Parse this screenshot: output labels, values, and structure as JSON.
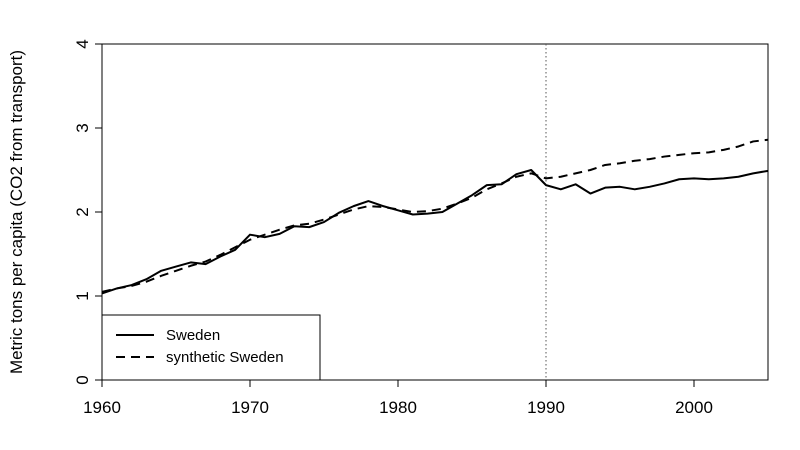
{
  "chart_data": {
    "type": "line",
    "title": "",
    "xlabel": "",
    "ylabel": "Metric tons per capita (CO2 from transport)",
    "xlim": [
      1960,
      2005
    ],
    "ylim": [
      0,
      4
    ],
    "x_ticks": [
      1960,
      1970,
      1980,
      1990,
      2000
    ],
    "y_ticks": [
      0,
      1,
      2,
      3,
      4
    ],
    "x_tick_labels": [
      "1960",
      "1970",
      "1980",
      "1990",
      "2000"
    ],
    "y_tick_labels": [
      "0",
      "1",
      "2",
      "3",
      "4"
    ],
    "reference_line": {
      "x": 1990,
      "style": "dotted"
    },
    "grid": false,
    "legend_position": "bottom-left",
    "x": [
      1960,
      1961,
      1962,
      1963,
      1964,
      1965,
      1966,
      1967,
      1968,
      1969,
      1970,
      1971,
      1972,
      1973,
      1974,
      1975,
      1976,
      1977,
      1978,
      1979,
      1980,
      1981,
      1982,
      1983,
      1984,
      1985,
      1986,
      1987,
      1988,
      1989,
      1990,
      1991,
      1992,
      1993,
      1994,
      1995,
      1996,
      1997,
      1998,
      1999,
      2000,
      2001,
      2002,
      2003,
      2004,
      2005
    ],
    "series": [
      {
        "name": "Sweden",
        "line_style": "solid",
        "values": [
          1.03,
          1.09,
          1.13,
          1.2,
          1.3,
          1.35,
          1.4,
          1.38,
          1.47,
          1.55,
          1.73,
          1.7,
          1.74,
          1.83,
          1.82,
          1.88,
          1.99,
          2.07,
          2.13,
          2.07,
          2.02,
          1.97,
          1.98,
          2.0,
          2.1,
          2.2,
          2.32,
          2.33,
          2.45,
          2.5,
          2.32,
          2.27,
          2.33,
          2.22,
          2.29,
          2.3,
          2.27,
          2.3,
          2.34,
          2.39,
          2.4,
          2.39,
          2.4,
          2.42,
          2.46,
          2.49
        ]
      },
      {
        "name": "synthetic Sweden",
        "line_style": "dashed",
        "values": [
          1.05,
          1.09,
          1.12,
          1.17,
          1.24,
          1.3,
          1.36,
          1.41,
          1.49,
          1.58,
          1.67,
          1.73,
          1.79,
          1.84,
          1.86,
          1.91,
          1.97,
          2.03,
          2.07,
          2.06,
          2.03,
          2.0,
          2.01,
          2.04,
          2.1,
          2.17,
          2.27,
          2.34,
          2.42,
          2.46,
          2.4,
          2.42,
          2.46,
          2.5,
          2.56,
          2.58,
          2.61,
          2.63,
          2.66,
          2.68,
          2.7,
          2.71,
          2.74,
          2.78,
          2.84,
          2.86
        ]
      }
    ]
  }
}
